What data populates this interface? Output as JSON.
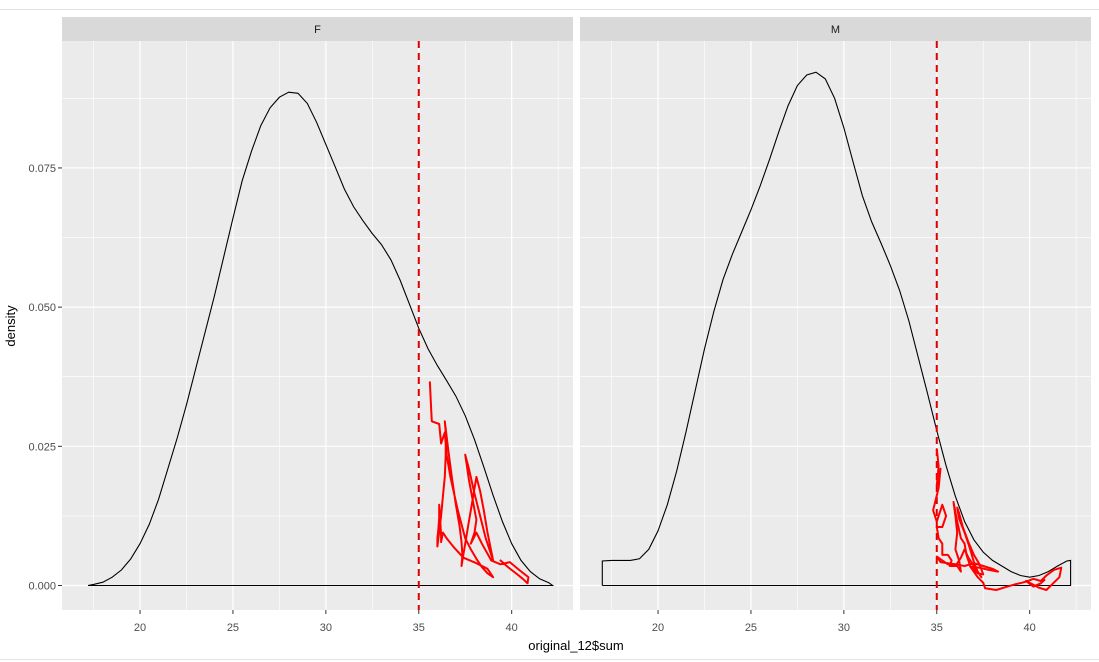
{
  "chart_data": {
    "type": "line",
    "title": "",
    "xlabel": "original_12$sum",
    "ylabel": "density",
    "xlim": [
      15.8,
      43.3
    ],
    "ylim": [
      -0.0044,
      0.0978
    ],
    "x_ticks": [
      20,
      25,
      30,
      35,
      40
    ],
    "x_tick_labels": [
      "20",
      "25",
      "30",
      "35",
      "40"
    ],
    "y_ticks": [
      0,
      0.025,
      0.05,
      0.075
    ],
    "y_tick_labels": [
      "0.000",
      "0.025",
      "0.050",
      "0.075"
    ],
    "grid": true,
    "reference_line": {
      "x": 35,
      "color": "#e00000",
      "style": "dashed"
    },
    "colors": {
      "panel": "#ebebeb",
      "strip": "#d9d9d9",
      "grid": "#ffffff",
      "density": "#000000",
      "overlay": "#ff0000"
    },
    "panels": [
      {
        "strip_label": "F",
        "density": [
          [
            17.2,
            0.0
          ],
          [
            17.5,
            0.0002
          ],
          [
            18,
            0.0006
          ],
          [
            18.5,
            0.0015
          ],
          [
            19,
            0.0028
          ],
          [
            19.5,
            0.0048
          ],
          [
            20,
            0.0075
          ],
          [
            20.5,
            0.011
          ],
          [
            21,
            0.0155
          ],
          [
            21.5,
            0.021
          ],
          [
            22,
            0.0265
          ],
          [
            22.5,
            0.0325
          ],
          [
            23,
            0.039
          ],
          [
            23.5,
            0.0455
          ],
          [
            24,
            0.052
          ],
          [
            24.5,
            0.059
          ],
          [
            25,
            0.066
          ],
          [
            25.5,
            0.0727
          ],
          [
            26,
            0.078
          ],
          [
            26.5,
            0.0826
          ],
          [
            27,
            0.0858
          ],
          [
            27.5,
            0.0877
          ],
          [
            28,
            0.0886
          ],
          [
            28.5,
            0.0884
          ],
          [
            29,
            0.0866
          ],
          [
            29.5,
            0.0832
          ],
          [
            30,
            0.0792
          ],
          [
            30.5,
            0.0752
          ],
          [
            31,
            0.0712
          ],
          [
            31.5,
            0.068
          ],
          [
            32,
            0.0655
          ],
          [
            32.5,
            0.0632
          ],
          [
            33,
            0.0612
          ],
          [
            33.5,
            0.0585
          ],
          [
            34,
            0.0548
          ],
          [
            34.5,
            0.0505
          ],
          [
            35,
            0.0462
          ],
          [
            35.5,
            0.0425
          ],
          [
            36,
            0.0395
          ],
          [
            36.5,
            0.0368
          ],
          [
            37,
            0.034
          ],
          [
            37.5,
            0.0305
          ],
          [
            38,
            0.0262
          ],
          [
            38.5,
            0.0213
          ],
          [
            39,
            0.0162
          ],
          [
            39.5,
            0.0115
          ],
          [
            40,
            0.0075
          ],
          [
            40.5,
            0.0045
          ],
          [
            41,
            0.0025
          ],
          [
            41.5,
            0.0012
          ],
          [
            42,
            0.0005
          ],
          [
            42.2,
            0.0
          ],
          [
            17.2,
            0.0
          ]
        ],
        "overlay": [
          [
            35.6,
            0.0365
          ],
          [
            35.65,
            0.033
          ],
          [
            35.7,
            0.0295
          ],
          [
            36.1,
            0.029
          ],
          [
            36.2,
            0.0255
          ],
          [
            36.4,
            0.0275
          ],
          [
            36.5,
            0.0235
          ],
          [
            36.7,
            0.0195
          ],
          [
            36.9,
            0.0165
          ],
          [
            37.1,
            0.0135
          ],
          [
            37.3,
            0.011
          ],
          [
            37.5,
            0.0085
          ],
          [
            37.8,
            0.0065
          ],
          [
            38.1,
            0.0048
          ],
          [
            38.4,
            0.0033
          ],
          [
            38.7,
            0.0022
          ],
          [
            39.0,
            0.0015
          ],
          [
            38.7,
            0.003
          ],
          [
            38.1,
            0.004
          ],
          [
            37.4,
            0.005
          ],
          [
            36.9,
            0.0068
          ],
          [
            36.5,
            0.0085
          ],
          [
            36.3,
            0.0095
          ],
          [
            36.2,
            0.0078
          ],
          [
            36.2,
            0.009
          ],
          [
            36.15,
            0.012
          ],
          [
            36.1,
            0.0145
          ],
          [
            36.1,
            0.0122
          ],
          [
            36.05,
            0.01
          ],
          [
            36.0,
            0.0085
          ],
          [
            36.0,
            0.007
          ],
          [
            36.2,
            0.0125
          ],
          [
            36.3,
            0.016
          ],
          [
            36.4,
            0.0195
          ],
          [
            36.45,
            0.0235
          ],
          [
            36.45,
            0.0275
          ],
          [
            36.4,
            0.0295
          ],
          [
            36.6,
            0.024
          ],
          [
            36.8,
            0.019
          ],
          [
            37.0,
            0.0145
          ],
          [
            37.2,
            0.0105
          ],
          [
            37.3,
            0.0078
          ],
          [
            37.35,
            0.0055
          ],
          [
            37.3,
            0.0035
          ],
          [
            37.5,
            0.0075
          ],
          [
            37.7,
            0.0115
          ],
          [
            37.9,
            0.0155
          ],
          [
            38.1,
            0.0195
          ],
          [
            38.3,
            0.017
          ],
          [
            38.5,
            0.0135
          ],
          [
            38.7,
            0.0095
          ],
          [
            38.9,
            0.0062
          ],
          [
            39.0,
            0.0045
          ],
          [
            38.6,
            0.0085
          ],
          [
            38.3,
            0.0125
          ],
          [
            38.0,
            0.0165
          ],
          [
            37.7,
            0.021
          ],
          [
            37.5,
            0.0235
          ],
          [
            37.7,
            0.019
          ],
          [
            37.95,
            0.0145
          ],
          [
            38.1,
            0.0118
          ],
          [
            38.0,
            0.0095
          ],
          [
            37.8,
            0.0075
          ],
          [
            38.1,
            0.0095
          ],
          [
            38.4,
            0.0075
          ],
          [
            38.9,
            0.0045
          ],
          [
            39.4,
            0.0038
          ],
          [
            39.9,
            0.0042
          ],
          [
            40.4,
            0.0028
          ],
          [
            40.9,
            0.0015
          ],
          [
            40.85,
            0.0004
          ],
          [
            40.6,
            0.0012
          ],
          [
            40.3,
            0.002
          ],
          [
            39.8,
            0.0033
          ],
          [
            39.4,
            0.0045
          ]
        ]
      },
      {
        "strip_label": "M",
        "density": [
          [
            17.0,
            0.0
          ],
          [
            17.0,
            0.0044
          ],
          [
            17.5,
            0.0045
          ],
          [
            18,
            0.0045
          ],
          [
            18.5,
            0.0045
          ],
          [
            19,
            0.0048
          ],
          [
            19.5,
            0.0065
          ],
          [
            20,
            0.0098
          ],
          [
            20.5,
            0.0145
          ],
          [
            21,
            0.0205
          ],
          [
            21.5,
            0.0275
          ],
          [
            22,
            0.035
          ],
          [
            22.5,
            0.0425
          ],
          [
            23,
            0.0492
          ],
          [
            23.5,
            0.055
          ],
          [
            24,
            0.0595
          ],
          [
            24.5,
            0.0635
          ],
          [
            25,
            0.0675
          ],
          [
            25.5,
            0.0718
          ],
          [
            26,
            0.0765
          ],
          [
            26.5,
            0.0815
          ],
          [
            27,
            0.0862
          ],
          [
            27.5,
            0.0898
          ],
          [
            28,
            0.0917
          ],
          [
            28.5,
            0.0922
          ],
          [
            29,
            0.091
          ],
          [
            29.5,
            0.0875
          ],
          [
            30,
            0.0822
          ],
          [
            30.5,
            0.076
          ],
          [
            31,
            0.07
          ],
          [
            31.5,
            0.0653
          ],
          [
            32,
            0.0615
          ],
          [
            32.5,
            0.0575
          ],
          [
            33,
            0.053
          ],
          [
            33.5,
            0.0475
          ],
          [
            34,
            0.041
          ],
          [
            34.5,
            0.0345
          ],
          [
            35,
            0.0278
          ],
          [
            35.5,
            0.0215
          ],
          [
            36,
            0.016
          ],
          [
            36.5,
            0.0115
          ],
          [
            37,
            0.0082
          ],
          [
            37.5,
            0.006
          ],
          [
            38,
            0.0045
          ],
          [
            38.5,
            0.0035
          ],
          [
            39,
            0.0025
          ],
          [
            39.5,
            0.0018
          ],
          [
            40,
            0.0015
          ],
          [
            40.5,
            0.0018
          ],
          [
            41,
            0.0025
          ],
          [
            41.5,
            0.0035
          ],
          [
            42,
            0.0044
          ],
          [
            42.2,
            0.0045
          ],
          [
            42.2,
            0.0
          ],
          [
            17.0,
            0.0
          ]
        ],
        "overlay": [
          [
            35.0,
            0.0245
          ],
          [
            35.1,
            0.0215
          ],
          [
            35.0,
            0.018
          ],
          [
            35.2,
            0.021
          ],
          [
            35.1,
            0.0175
          ],
          [
            34.8,
            0.0135
          ],
          [
            35.0,
            0.0115
          ],
          [
            35.3,
            0.0145
          ],
          [
            35.5,
            0.0125
          ],
          [
            35.3,
            0.0105
          ],
          [
            35.0,
            0.0105
          ],
          [
            35.1,
            0.0085
          ],
          [
            35.3,
            0.0075
          ],
          [
            35.3,
            0.0055
          ],
          [
            35.6,
            0.0055
          ],
          [
            35.8,
            0.0045
          ],
          [
            35.7,
            0.0035
          ],
          [
            36.1,
            0.0035
          ],
          [
            36.3,
            0.0025
          ],
          [
            36.2,
            0.0045
          ],
          [
            36.0,
            0.0065
          ],
          [
            36.1,
            0.0095
          ],
          [
            36.0,
            0.0125
          ],
          [
            35.9,
            0.015
          ],
          [
            36.1,
            0.0115
          ],
          [
            36.3,
            0.0085
          ],
          [
            36.5,
            0.0075
          ],
          [
            36.6,
            0.0055
          ],
          [
            36.8,
            0.0035
          ],
          [
            37.0,
            0.003
          ],
          [
            37.2,
            0.0022
          ],
          [
            37.5,
            0.002
          ],
          [
            37.3,
            0.0038
          ],
          [
            37.0,
            0.0055
          ],
          [
            36.7,
            0.0078
          ],
          [
            36.4,
            0.0105
          ],
          [
            36.2,
            0.013
          ],
          [
            36.1,
            0.014
          ],
          [
            36.2,
            0.012
          ],
          [
            36.5,
            0.0095
          ],
          [
            36.8,
            0.0065
          ],
          [
            37.0,
            0.0042
          ],
          [
            37.2,
            0.0025
          ],
          [
            37.4,
            0.0015
          ],
          [
            37.0,
            0.0035
          ],
          [
            36.7,
            0.005
          ],
          [
            36.5,
            0.0065
          ],
          [
            36.3,
            0.005
          ],
          [
            36.0,
            0.0035
          ],
          [
            35.6,
            0.0038
          ],
          [
            35.3,
            0.0045
          ],
          [
            35.0,
            0.0052
          ],
          [
            35.2,
            0.0042
          ],
          [
            35.6,
            0.004
          ],
          [
            36.0,
            0.0038
          ],
          [
            36.5,
            0.0035
          ],
          [
            37.0,
            0.004
          ],
          [
            37.5,
            0.0035
          ],
          [
            38.0,
            0.003
          ],
          [
            38.3,
            0.0025
          ],
          [
            37.8,
            0.0028
          ],
          [
            37.3,
            0.0032
          ],
          [
            36.8,
            0.0034
          ],
          [
            37.2,
            0.0015
          ],
          [
            37.5,
            0.0005
          ],
          [
            37.6,
            -0.0005
          ],
          [
            38.2,
            -0.0008
          ],
          [
            38.8,
            -0.0002
          ],
          [
            39.2,
            0.0002
          ],
          [
            39.6,
            0.0005
          ],
          [
            39.9,
            0.0008
          ],
          [
            40.2,
            0.0012
          ],
          [
            40.6,
            0.0008
          ],
          [
            40.9,
            0.0018
          ],
          [
            41.3,
            0.0028
          ],
          [
            41.7,
            0.0032
          ],
          [
            41.6,
            0.0015
          ],
          [
            41.3,
            0.0005
          ],
          [
            40.9,
            -0.0008
          ],
          [
            40.5,
            -0.0004
          ],
          [
            40.1,
            0.0003
          ],
          [
            39.8,
            0.0008
          ],
          [
            40.0,
            0.0003
          ],
          [
            40.2,
            -0.0002
          ],
          [
            40.6,
            0.0004
          ],
          [
            40.8,
            0.001
          ]
        ]
      }
    ]
  }
}
